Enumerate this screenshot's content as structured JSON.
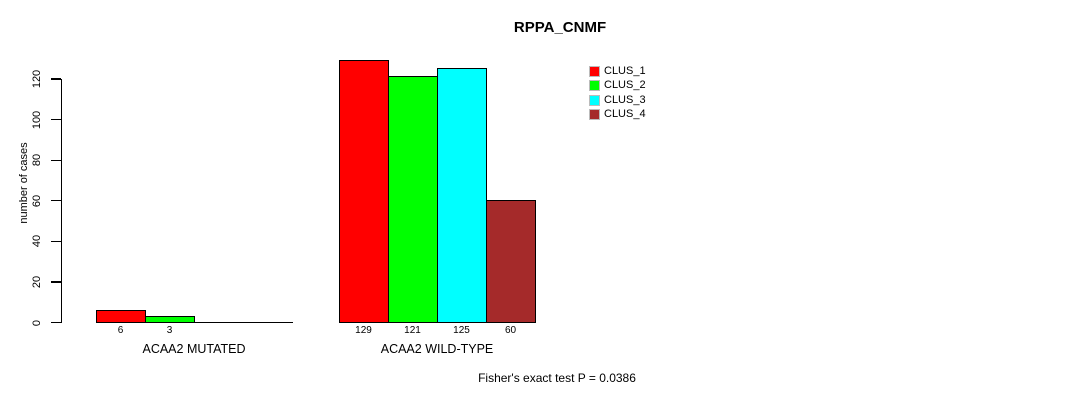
{
  "title": "RPPA_CNMF",
  "footer": "Fisher's exact test P = 0.0386",
  "chart_data": {
    "type": "bar",
    "title": "RPPA_CNMF",
    "xlabel": "",
    "ylabel": "number of cases",
    "categories": [
      "ACAA2 MUTATED",
      "ACAA2 WILD-TYPE"
    ],
    "series": [
      {
        "name": "CLUS_1",
        "color": "#ff0000",
        "values": [
          6,
          129
        ]
      },
      {
        "name": "CLUS_2",
        "color": "#00ff00",
        "values": [
          3,
          121
        ]
      },
      {
        "name": "CLUS_3",
        "color": "#00ffff",
        "values": [
          0,
          125
        ]
      },
      {
        "name": "CLUS_4",
        "color": "#a52a2a",
        "values": [
          0,
          60
        ]
      }
    ],
    "yticks": [
      0,
      20,
      40,
      60,
      80,
      100,
      120
    ],
    "ylim": [
      0,
      130
    ],
    "grid": false,
    "legend_position": "top-right",
    "value_labels": "shown under each nonzero bar",
    "annotation": "Fisher's exact test P = 0.0386"
  }
}
